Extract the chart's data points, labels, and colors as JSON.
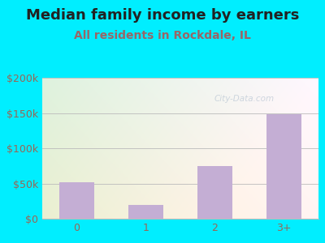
{
  "title": "Median family income by earners",
  "subtitle": "All residents in Rockdale, IL",
  "categories": [
    "0",
    "1",
    "2",
    "3+"
  ],
  "values": [
    52000,
    20000,
    75000,
    148000
  ],
  "bar_color": "#c4aed4",
  "ylim": [
    0,
    200000
  ],
  "yticks": [
    0,
    50000,
    100000,
    150000,
    200000
  ],
  "ytick_labels": [
    "$0",
    "$50k",
    "$100k",
    "$150k",
    "$200k"
  ],
  "title_fontsize": 13,
  "subtitle_fontsize": 10,
  "tick_fontsize": 9,
  "background_outer": "#00eeff",
  "background_plot_topleft": "#d8f0d8",
  "background_plot_topright": "#f0f0f0",
  "background_plot_bottom": "#f0f0d8",
  "grid_color": "#bbbbbb",
  "title_color": "#222222",
  "subtitle_color": "#996666",
  "tick_color": "#996655",
  "watermark": "City-Data.com",
  "watermark_color": "#aabbcc",
  "watermark_alpha": 0.55
}
